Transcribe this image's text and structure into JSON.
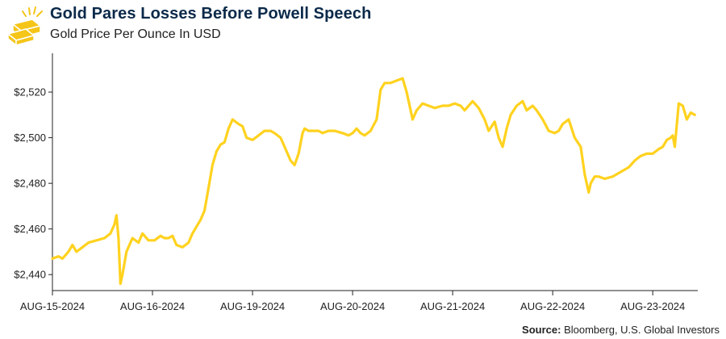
{
  "header": {
    "title": "Gold Pares Losses Before Powell Speech",
    "subtitle": "Gold Price Per Ounce In USD"
  },
  "footer": {
    "source_label": "Source:",
    "source_text": "Bloomberg, U.S. Global Investors"
  },
  "icons": {
    "logo": "gold-bars-icon"
  },
  "colors": {
    "line": "#FFD21F",
    "title": "#0B2A4A",
    "axis": "#222222",
    "logo_gold": "#F5C518"
  },
  "chart_data": {
    "type": "line",
    "title": "Gold Pares Losses Before Powell Speech",
    "subtitle": "Gold Price Per Ounce In USD",
    "xlabel": "",
    "ylabel": "",
    "y_prefix": "$",
    "ylim": [
      2433,
      2537
    ],
    "xlim": [
      0,
      6.45
    ],
    "yticks": [
      2440,
      2460,
      2480,
      2500,
      2520
    ],
    "ytick_labels": [
      "$2,440",
      "$2,460",
      "$2,480",
      "$2,500",
      "$2,520"
    ],
    "xticks": [
      0,
      1,
      2,
      3,
      4,
      5,
      6
    ],
    "xtick_labels": [
      "AUG-15-2024",
      "AUG-16-2024",
      "AUG-19-2024",
      "AUG-20-2024",
      "AUG-21-2024",
      "AUG-22-2024",
      "AUG-23-2024"
    ],
    "grid": false,
    "legend": "none",
    "series": [
      {
        "name": "Gold Price",
        "x": [
          0,
          0.06,
          0.1,
          0.16,
          0.2,
          0.24,
          0.3,
          0.36,
          0.44,
          0.52,
          0.58,
          0.62,
          0.64,
          0.66,
          0.68,
          0.7,
          0.74,
          0.8,
          0.86,
          0.9,
          0.96,
          1.02,
          1.08,
          1.12,
          1.16,
          1.2,
          1.24,
          1.3,
          1.36,
          1.4,
          1.44,
          1.48,
          1.52,
          1.56,
          1.6,
          1.64,
          1.68,
          1.72,
          1.76,
          1.8,
          1.86,
          1.9,
          1.94,
          2.0,
          2.06,
          2.12,
          2.18,
          2.22,
          2.28,
          2.32,
          2.38,
          2.42,
          2.46,
          2.5,
          2.52,
          2.56,
          2.62,
          2.66,
          2.7,
          2.76,
          2.82,
          2.9,
          2.96,
          3.0,
          3.04,
          3.08,
          3.12,
          3.18,
          3.24,
          3.28,
          3.32,
          3.38,
          3.44,
          3.5,
          3.54,
          3.6,
          3.64,
          3.7,
          3.76,
          3.82,
          3.9,
          3.96,
          4.02,
          4.08,
          4.12,
          4.16,
          4.2,
          4.26,
          4.32,
          4.36,
          4.42,
          4.46,
          4.5,
          4.54,
          4.58,
          4.64,
          4.7,
          4.74,
          4.8,
          4.84,
          4.9,
          4.96,
          5.02,
          5.06,
          5.1,
          5.16,
          5.22,
          5.28,
          5.32,
          5.36,
          5.38,
          5.42,
          5.46,
          5.52,
          5.6,
          5.68,
          5.76,
          5.82,
          5.88,
          5.94,
          6.0,
          6.06,
          6.1,
          6.14,
          6.18,
          6.2,
          6.22,
          6.26,
          6.3,
          6.34,
          6.38,
          6.42
        ],
        "values": [
          2447,
          2448,
          2447,
          2450,
          2453,
          2450,
          2452,
          2454,
          2455,
          2456,
          2458,
          2462,
          2466,
          2456,
          2436,
          2440,
          2450,
          2456,
          2454,
          2458,
          2455,
          2455,
          2457,
          2456,
          2456,
          2457,
          2453,
          2452,
          2454,
          2458,
          2461,
          2464,
          2468,
          2478,
          2488,
          2494,
          2497,
          2498,
          2504,
          2508,
          2506,
          2505,
          2500,
          2499,
          2501,
          2503,
          2503,
          2502,
          2500,
          2496,
          2490,
          2488,
          2493,
          2502,
          2504,
          2503,
          2503,
          2503,
          2502,
          2503,
          2503,
          2502,
          2501,
          2502,
          2504,
          2502,
          2501,
          2503,
          2508,
          2521,
          2524,
          2524,
          2525,
          2526,
          2520,
          2508,
          2512,
          2515,
          2514,
          2513,
          2514,
          2514,
          2515,
          2514,
          2512,
          2514,
          2516,
          2513,
          2508,
          2503,
          2507,
          2500,
          2496,
          2504,
          2510,
          2514,
          2516,
          2512,
          2514,
          2512,
          2508,
          2503,
          2502,
          2503,
          2506,
          2508,
          2500,
          2496,
          2484,
          2476,
          2480,
          2483,
          2483,
          2482,
          2483,
          2485,
          2487,
          2490,
          2492,
          2493,
          2493,
          2495,
          2496,
          2499,
          2500,
          2501,
          2496,
          2515,
          2514,
          2508,
          2511,
          2510
        ]
      }
    ]
  }
}
